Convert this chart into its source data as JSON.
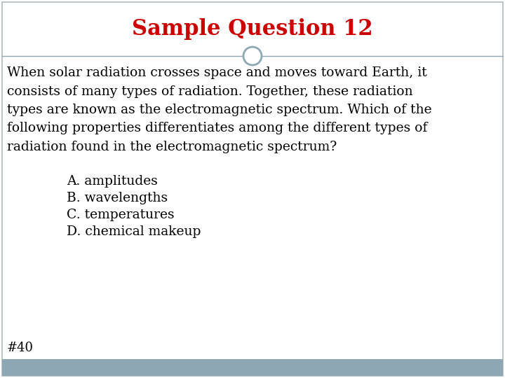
{
  "title": "Sample Question 12",
  "title_color": "#cc0000",
  "title_fontsize": 22,
  "body_lines": [
    "When solar radiation crosses space and moves toward Earth, it",
    "consists of many types of radiation. Together, these radiation",
    "types are known as the electromagnetic spectrum. Which of the",
    "following properties differentiates among the different types of",
    "radiation found in the electromagnetic spectrum?"
  ],
  "choices": [
    "A. amplitudes",
    "B. wavelengths",
    "C. temperatures",
    "D. chemical makeup"
  ],
  "footnote": "#40",
  "body_fontsize": 13.5,
  "choices_fontsize": 13.5,
  "footnote_fontsize": 13.0,
  "background_color": "#ffffff",
  "footer_color": "#8da8b2",
  "header_line_color": "#8da8b2",
  "circle_color": "#8da8b2",
  "text_color": "#000000",
  "border_color": "#b0b8bc"
}
